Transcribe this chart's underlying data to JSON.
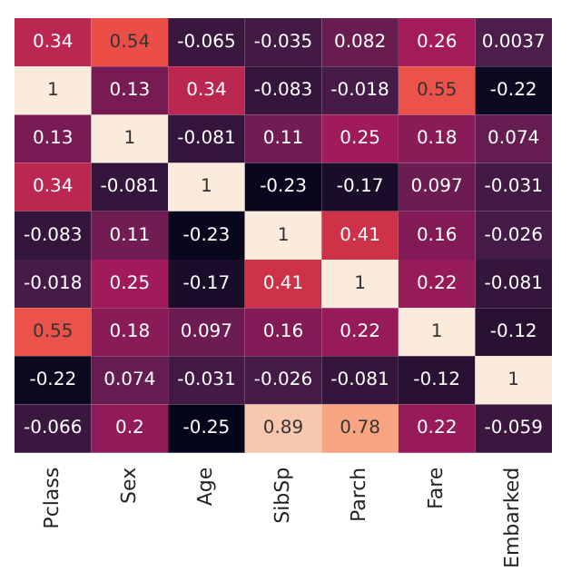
{
  "chart_data": {
    "type": "heatmap",
    "categories": [
      "Pclass",
      "Sex",
      "Age",
      "SibSp",
      "Parch",
      "Fare",
      "Embarked"
    ],
    "y_categories": [
      null,
      null,
      null,
      null,
      null,
      null,
      null,
      null,
      null
    ],
    "cells": [
      [
        0.34,
        0.54,
        -0.065,
        -0.035,
        0.082,
        0.26,
        0.0037
      ],
      [
        1,
        0.13,
        0.34,
        -0.083,
        -0.018,
        0.55,
        -0.22
      ],
      [
        0.13,
        1,
        -0.081,
        0.11,
        0.25,
        0.18,
        0.074
      ],
      [
        0.34,
        -0.081,
        1,
        -0.23,
        -0.17,
        0.097,
        -0.031
      ],
      [
        -0.083,
        0.11,
        -0.23,
        1,
        0.41,
        0.16,
        -0.026
      ],
      [
        -0.018,
        0.25,
        -0.17,
        0.41,
        1,
        0.22,
        -0.081
      ],
      [
        0.55,
        0.18,
        0.097,
        0.16,
        0.22,
        1,
        -0.12
      ],
      [
        -0.22,
        0.074,
        -0.031,
        -0.026,
        -0.081,
        -0.12,
        1
      ],
      [
        -0.066,
        0.2,
        -0.25,
        0.89,
        0.78,
        0.22,
        -0.059
      ]
    ],
    "data_labels": true,
    "tick_labels": "x"
  }
}
